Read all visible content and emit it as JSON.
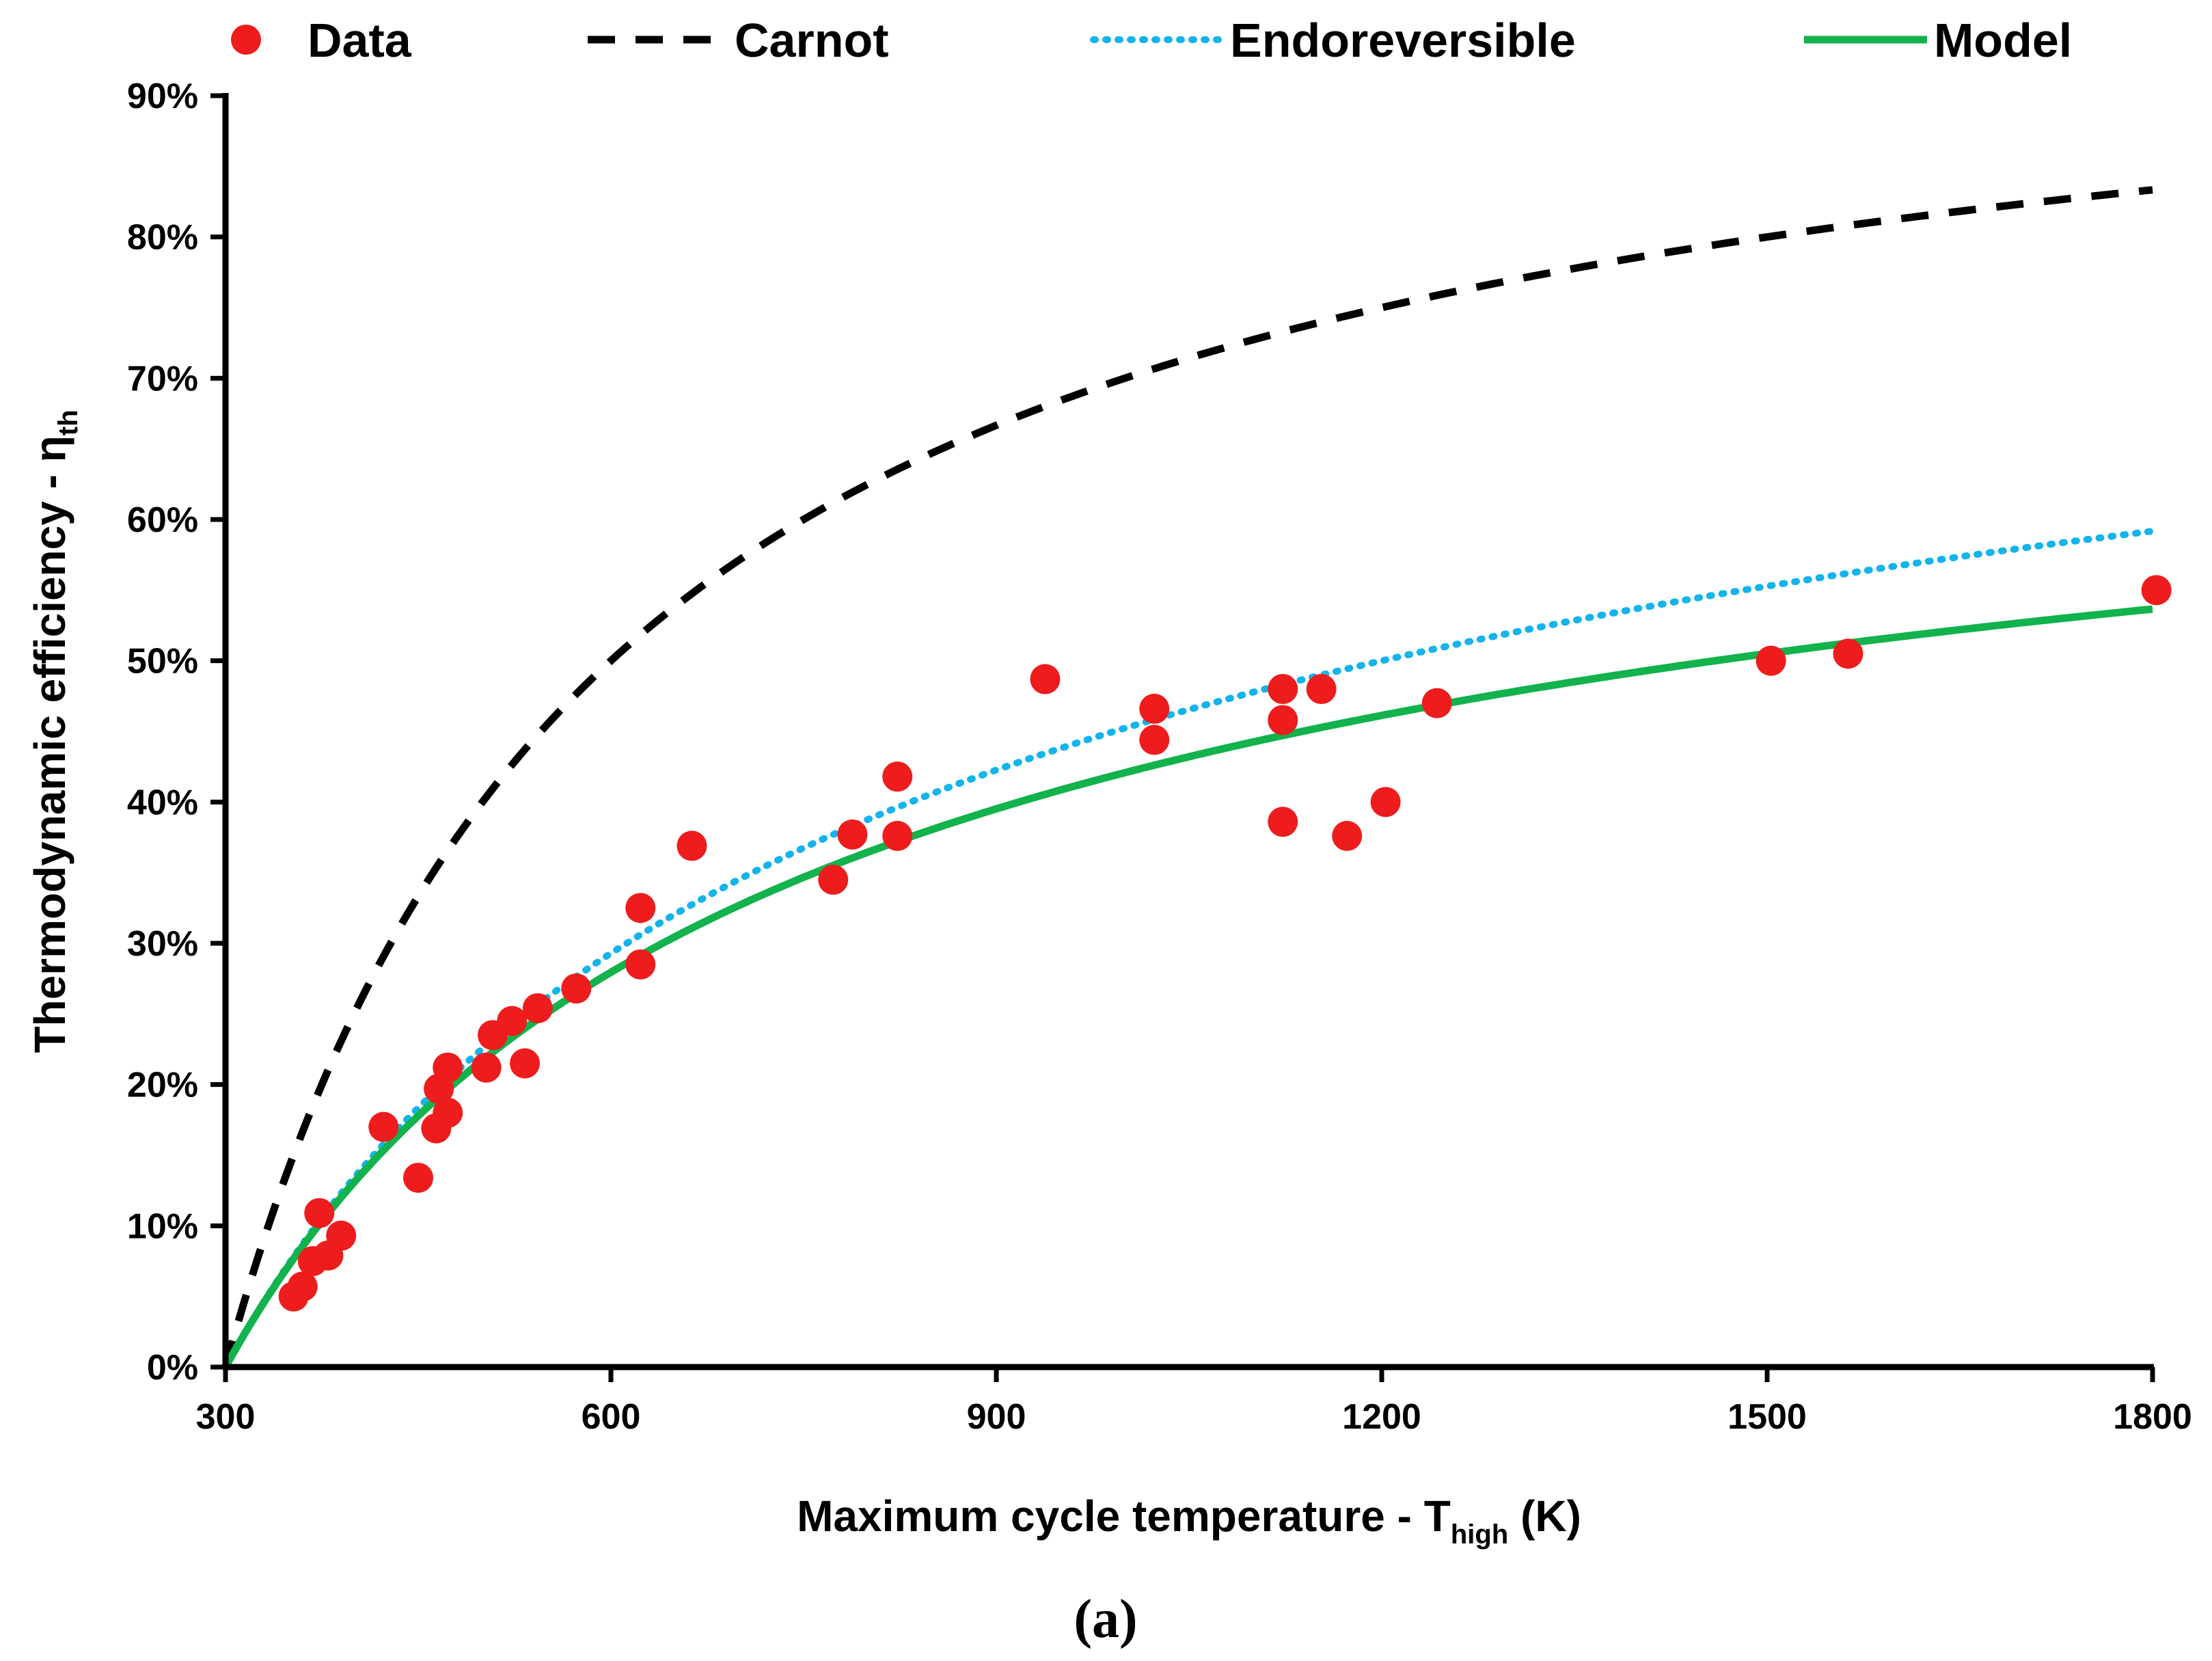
{
  "chart_data": {
    "type": "scatter",
    "caption": "(a)",
    "xlabel": {
      "main": "Maximum cycle temperature  - T",
      "sub": "high",
      "suffix": " (K)"
    },
    "ylabel": {
      "main": "Thermodynamic efficiency - η",
      "sub": "th"
    },
    "xlim": [
      300,
      1800
    ],
    "ylim": [
      0,
      0.9
    ],
    "xticks": [
      300,
      600,
      900,
      1200,
      1500,
      1800
    ],
    "xtick_labels": [
      "300",
      "600",
      "900",
      "1200",
      "1500",
      "1800"
    ],
    "yticks": [
      0,
      0.1,
      0.2,
      0.3,
      0.4,
      0.5,
      0.6,
      0.7,
      0.8,
      0.9
    ],
    "ytick_labels": [
      "0%",
      "10%",
      "20%",
      "30%",
      "40%",
      "50%",
      "60%",
      "70%",
      "80%",
      "90%"
    ],
    "grid": false,
    "legend_position": "top",
    "T_low": 300,
    "series": [
      {
        "name": "Data",
        "kind": "points",
        "color": "#ee1c1c",
        "points": [
          [
            353,
            0.05
          ],
          [
            360,
            0.057
          ],
          [
            368,
            0.075
          ],
          [
            373,
            0.109
          ],
          [
            380,
            0.079
          ],
          [
            390,
            0.093
          ],
          [
            423,
            0.17
          ],
          [
            450,
            0.134
          ],
          [
            464,
            0.169
          ],
          [
            466,
            0.197
          ],
          [
            473,
            0.212
          ],
          [
            473,
            0.18
          ],
          [
            503,
            0.212
          ],
          [
            508,
            0.235
          ],
          [
            523,
            0.245
          ],
          [
            533,
            0.215
          ],
          [
            543,
            0.254
          ],
          [
            573,
            0.268
          ],
          [
            623,
            0.325
          ],
          [
            623,
            0.285
          ],
          [
            663,
            0.369
          ],
          [
            773,
            0.345
          ],
          [
            788,
            0.377
          ],
          [
            823,
            0.418
          ],
          [
            823,
            0.376
          ],
          [
            938,
            0.487
          ],
          [
            1023,
            0.466
          ],
          [
            1023,
            0.444
          ],
          [
            1123,
            0.48
          ],
          [
            1123,
            0.458
          ],
          [
            1123,
            0.386
          ],
          [
            1153,
            0.48
          ],
          [
            1173,
            0.376
          ],
          [
            1203,
            0.4
          ],
          [
            1243,
            0.47
          ],
          [
            1503,
            0.5
          ],
          [
            1563,
            0.505
          ],
          [
            1803,
            0.55
          ]
        ]
      },
      {
        "name": "Carnot",
        "kind": "curve",
        "formula": "carnot",
        "color": "#000000",
        "dash": "40 30",
        "width": 11
      },
      {
        "name": "Endoreversible",
        "kind": "curve",
        "formula": "endoreversible",
        "color": "#13b4ec",
        "dash": "3 15",
        "width": 10
      },
      {
        "name": "Model",
        "kind": "curve",
        "formula": "model",
        "model_coeff": 0.8,
        "color": "#12b24c",
        "dash": "",
        "width": 11
      }
    ]
  }
}
